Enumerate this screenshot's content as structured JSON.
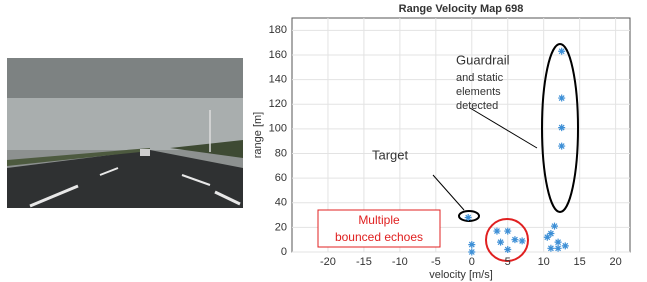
{
  "chart_data": {
    "type": "scatter",
    "title": "Range Velocity Map 698",
    "x_label": "velocity [m/s]",
    "y_label": "range [m]",
    "x": [
      -0.5,
      0,
      0,
      3.5,
      5,
      4,
      6,
      7,
      5,
      12.5,
      12.5,
      12.5,
      12.5,
      11.5,
      11,
      10.5,
      12,
      13,
      11,
      12
    ],
    "values": [
      28,
      6,
      0,
      17,
      17,
      8,
      10,
      9,
      2,
      163,
      125,
      101,
      86,
      21,
      15,
      12,
      8,
      5,
      3,
      3
    ],
    "color": "#3d8fd6",
    "xlim": [
      -25,
      22
    ],
    "xticks": [
      -20,
      -15,
      -10,
      -5,
      0,
      5,
      10,
      15,
      20
    ],
    "ylim": [
      0,
      190
    ],
    "yticks": [
      0,
      20,
      40,
      60,
      80,
      100,
      120,
      140,
      160,
      180
    ],
    "grid": true,
    "annotations": [
      "Guardrail",
      "and static",
      "elements",
      "detected",
      "Target",
      "Multiple",
      "bounced echoes"
    ]
  }
}
